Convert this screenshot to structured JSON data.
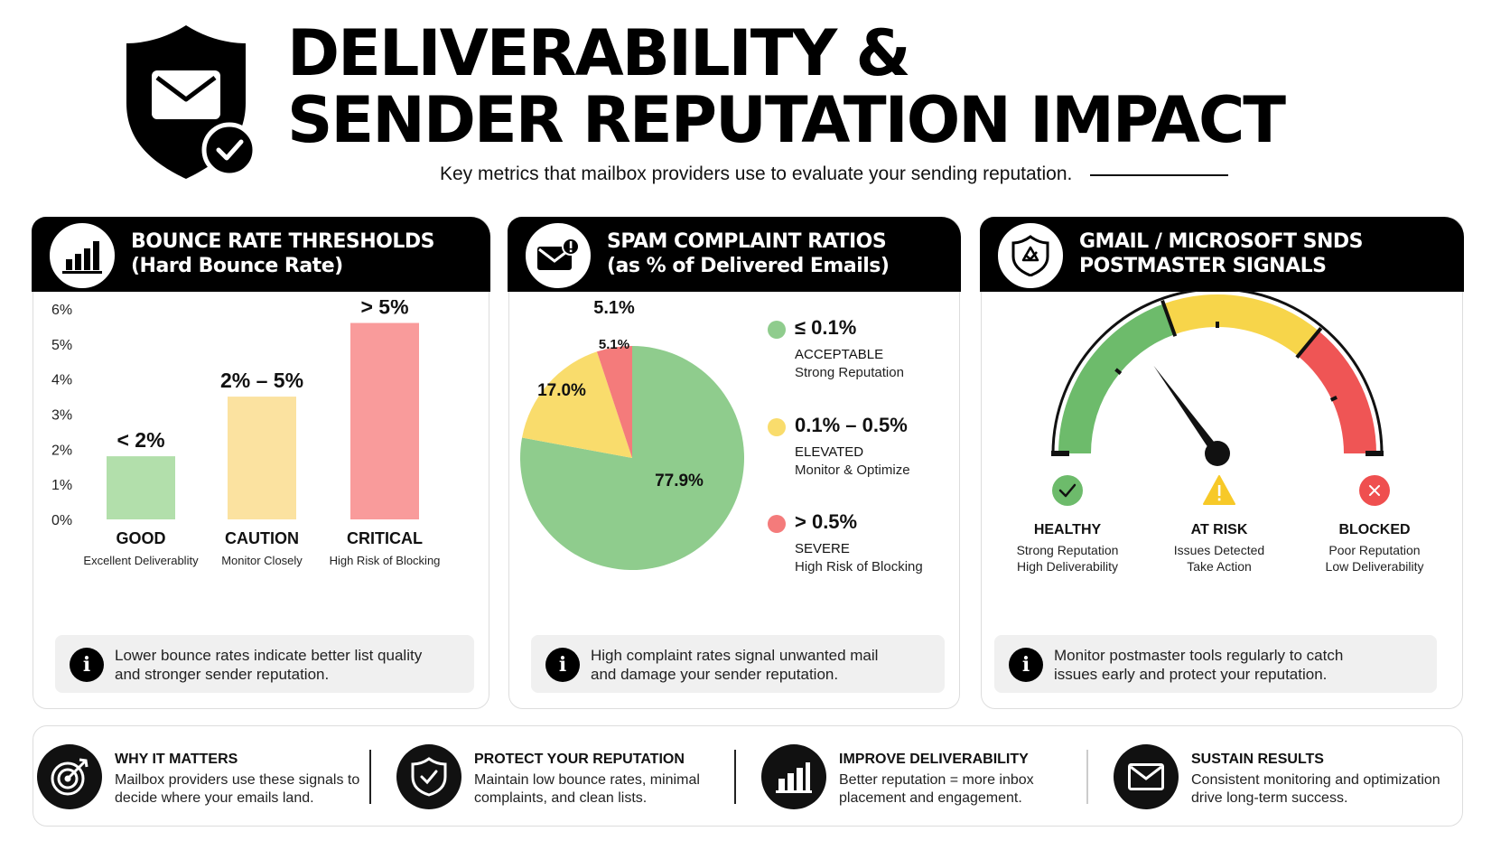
{
  "header": {
    "title_line1": "DELIVERABILITY &",
    "title_line2": "SENDER REPUTATION IMPACT",
    "subtitle": "Key metrics that mailbox providers use to evaluate your sending reputation.",
    "logo_icon": "shield-envelope-check-icon"
  },
  "bounce_panel": {
    "title_line1": "BOUNCE RATE THRESHOLDS",
    "title_line2": "(Hard Bounce Rate)",
    "icon": "bar-chart-icon",
    "info": "Lower bounce rates indicate better list quality and stronger sender reputation.",
    "info_line1": "Lower bounce rates indicate better list quality",
    "info_line2": "and stronger sender reputation."
  },
  "spam_panel": {
    "title_line1": "SPAM COMPLAINT RATIOS",
    "title_line2": "(as % of Delivered Emails)",
    "icon": "envelope-alert-icon",
    "info_line1": "High complaint rates signal unwanted mail",
    "info_line2": "and damage your sender reputation.",
    "legend": [
      {
        "range": "≤ 0.1%",
        "status": "ACCEPTABLE",
        "desc": "Strong Reputation",
        "color": "#8fcc8d"
      },
      {
        "range": "0.1% – 0.5%",
        "status": "ELEVATED",
        "desc": "Monitor & Optimize",
        "color": "#f9dc6c"
      },
      {
        "range": "> 0.5%",
        "status": "SEVERE",
        "desc": "High Risk of Blocking",
        "color": "#f47b7b"
      }
    ]
  },
  "postmaster_panel": {
    "title_line1": "GMAIL / MICROSOFT SNDS",
    "title_line2": "POSTMASTER SIGNALS",
    "icon": "shield-badge-icon",
    "info_line1": "Monitor postmaster tools regularly to catch",
    "info_line2": "issues early and protect your reputation.",
    "statuses": [
      {
        "label": "HEALTHY",
        "line1": "Strong Reputation",
        "line2": "High Deliverability",
        "icon": "check-circle-icon",
        "color": "#6dbb6b"
      },
      {
        "label": "AT RISK",
        "line1": "Issues Detected",
        "line2": "Take Action",
        "icon": "warning-triangle-icon",
        "color": "#f7c928"
      },
      {
        "label": "BLOCKED",
        "line1": "Poor Reputation",
        "line2": "Low Deliverability",
        "icon": "x-circle-icon",
        "color": "#ef4f4f"
      }
    ]
  },
  "footer": [
    {
      "title": "WHY IT MATTERS",
      "line1": "Mailbox providers use these signals to",
      "line2": "decide where your emails land.",
      "icon": "target-arrow-icon"
    },
    {
      "title": "PROTECT YOUR REPUTATION",
      "line1": "Maintain low bounce rates, minimal",
      "line2": "complaints, and clean lists.",
      "icon": "shield-check-icon"
    },
    {
      "title": "IMPROVE DELIVERABILITY",
      "line1": "Better reputation = more inbox",
      "line2": "placement and engagement.",
      "icon": "bar-chart-icon"
    },
    {
      "title": "SUSTAIN RESULTS",
      "line1": "Consistent monitoring and optimization",
      "line2": "drive long-term success.",
      "icon": "envelope-icon"
    }
  ],
  "chart_data": [
    {
      "type": "bar",
      "title": "BOUNCE RATE THRESHOLDS (Hard Bounce Rate)",
      "categories": [
        "GOOD",
        "CAUTION",
        "CRITICAL"
      ],
      "subcategories": [
        "Excellent Deliverablity",
        "Monitor Closely",
        "High Risk of Blocking"
      ],
      "values": [
        1.8,
        3.5,
        5.6
      ],
      "value_labels": [
        "< 2%",
        "2% – 5%",
        "> 5%"
      ],
      "colors": [
        "#b2dfab",
        "#fbe2a0",
        "#f99b9b"
      ],
      "yticks": [
        "0%",
        "1%",
        "2%",
        "3%",
        "4%",
        "5%",
        "6%"
      ],
      "ylim": [
        0,
        6
      ],
      "grid": false
    },
    {
      "type": "pie",
      "title": "SPAM COMPLAINT RATIOS (as % of Delivered Emails)",
      "slices": [
        {
          "label": "≤ 0.1%",
          "value": 77.9,
          "text": "77.9%",
          "color": "#8fcc8d"
        },
        {
          "label": "0.1% – 0.5%",
          "value": 17.0,
          "text": "17.0%",
          "color": "#f9dc6c"
        },
        {
          "label": "> 0.5%",
          "value": 5.1,
          "text": "5.1%",
          "color": "#f47b7b"
        }
      ],
      "outer_label": "5.1%",
      "legend_position": "right"
    },
    {
      "type": "gauge",
      "title": "GMAIL / MICROSOFT SNDS POSTMASTER SIGNALS",
      "zones": [
        {
          "name": "HEALTHY",
          "from": 0,
          "to": 0.39,
          "color": "#6dbb6b"
        },
        {
          "name": "AT RISK",
          "from": 0.39,
          "to": 0.72,
          "color": "#f7d54a"
        },
        {
          "name": "BLOCKED",
          "from": 0.72,
          "to": 1.0,
          "color": "#ef5555"
        }
      ],
      "needle": 0.3
    }
  ]
}
